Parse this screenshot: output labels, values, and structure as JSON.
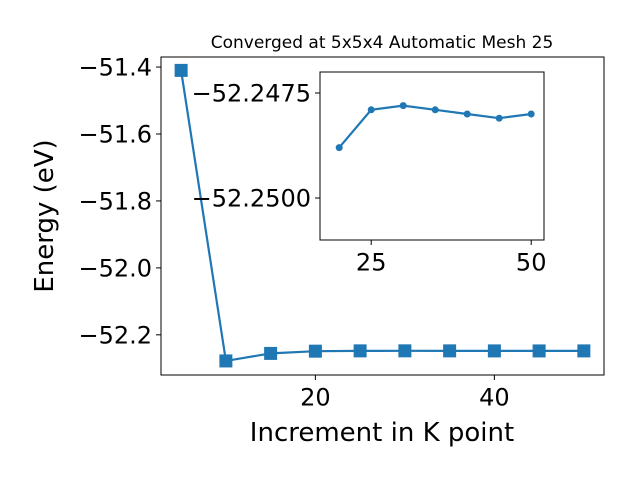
{
  "chart_data": [
    {
      "type": "line",
      "title": "Converged at 5x5x4 Automatic Mesh 25",
      "xlabel": "Increment in K point",
      "ylabel": "Energy (eV)",
      "xlim": [
        2.75,
        52.25
      ],
      "ylim": [
        -52.32,
        -51.37
      ],
      "xticks": [
        20,
        40
      ],
      "yticks": [
        -51.4,
        -51.6,
        -51.8,
        -52.0,
        -52.2
      ],
      "xtick_labels": [
        "20",
        "40"
      ],
      "ytick_labels": [
        "−51.4",
        "−51.6",
        "−51.8",
        "−52.0",
        "−52.2"
      ],
      "marker": "square",
      "color": "#1f77b4",
      "grid": false,
      "series": [
        {
          "x": [
            5,
            10,
            15,
            20,
            25,
            30,
            35,
            40,
            45,
            50
          ],
          "y": [
            -51.41,
            -52.278,
            -52.2555,
            -52.2488,
            -52.2479,
            -52.2478,
            -52.2479,
            -52.248,
            -52.2481,
            -52.248
          ]
        }
      ]
    },
    {
      "type": "line",
      "title": "",
      "xlabel": "",
      "ylabel": "",
      "inset": true,
      "xlim": [
        17,
        52
      ],
      "ylim": [
        -52.251,
        -52.247
      ],
      "xticks": [
        25,
        50
      ],
      "yticks": [
        -52.25,
        -52.2475
      ],
      "xtick_labels": [
        "25",
        "50"
      ],
      "ytick_labels": [
        "−52.2500",
        "−52.2475"
      ],
      "marker": "circle",
      "color": "#1f77b4",
      "grid": false,
      "series": [
        {
          "x": [
            20,
            25,
            30,
            35,
            40,
            45,
            50
          ],
          "y": [
            -52.2488,
            -52.2479,
            -52.2478,
            -52.2479,
            -52.248,
            -52.2481,
            -52.248
          ]
        }
      ]
    }
  ]
}
